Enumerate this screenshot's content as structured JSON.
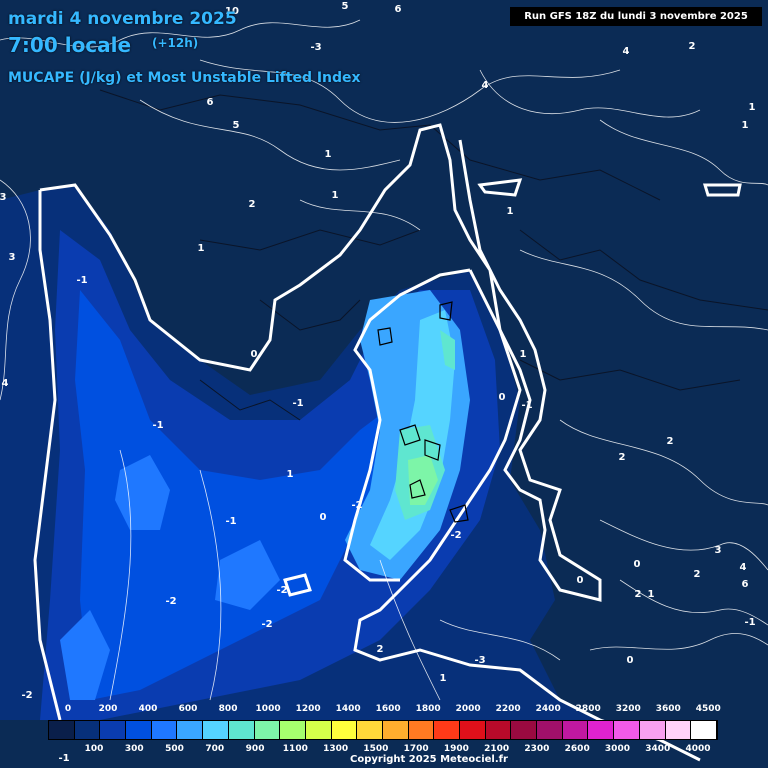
{
  "header": {
    "date": "mardi 4 novembre 2025",
    "time": "7:00 locale",
    "lead": "(+12h)",
    "parameter": "MUCAPE (J/kg) et Most Unstable Lifted Index"
  },
  "run_label": "Run GFS 18Z du lundi 3 novembre 2025",
  "copyright": "Copyright 2025 Meteociel.fr",
  "legend": {
    "top_labels": [
      "0",
      "200",
      "400",
      "600",
      "800",
      "1000",
      "1200",
      "1400",
      "1600",
      "1800",
      "2000",
      "2200",
      "2400",
      "2800",
      "3200",
      "3600",
      "4500"
    ],
    "bottom_labels": [
      "100",
      "300",
      "500",
      "700",
      "900",
      "1100",
      "1300",
      "1500",
      "1700",
      "1900",
      "2100",
      "2300",
      "2600",
      "3000",
      "3400",
      "4000"
    ],
    "colors": [
      "#0a1f4a",
      "#07307a",
      "#0a3cb0",
      "#0050e0",
      "#1f78ff",
      "#3aa6ff",
      "#55d4ff",
      "#5fe6d0",
      "#7df5a8",
      "#a6ff6e",
      "#d6ff4a",
      "#ffff3c",
      "#ffd83a",
      "#ffae2e",
      "#ff7a22",
      "#ff3a18",
      "#e0101a",
      "#b80a2a",
      "#9a0a40",
      "#a0106a",
      "#c018a0",
      "#e022d0",
      "#f25ae8",
      "#f7a0f0",
      "#ffd2fa",
      "#ffffff"
    ]
  },
  "lifted_index_labels": [
    {
      "text": "10"
    },
    {
      "text": "5"
    },
    {
      "text": "6"
    },
    {
      "text": "-3"
    },
    {
      "text": "4"
    },
    {
      "text": "2"
    },
    {
      "text": "4"
    },
    {
      "text": "1"
    },
    {
      "text": "1"
    },
    {
      "text": "6"
    },
    {
      "text": "5"
    },
    {
      "text": "3"
    },
    {
      "text": "1"
    },
    {
      "text": "1"
    },
    {
      "text": "2"
    },
    {
      "text": "1"
    },
    {
      "text": "1"
    },
    {
      "text": "3"
    },
    {
      "text": "-1"
    },
    {
      "text": "0"
    },
    {
      "text": "4"
    },
    {
      "text": "-1"
    },
    {
      "text": "1"
    },
    {
      "text": "0"
    },
    {
      "text": "-1"
    },
    {
      "text": "-1"
    },
    {
      "text": "1"
    },
    {
      "text": "2"
    },
    {
      "text": "2"
    },
    {
      "text": "-2"
    },
    {
      "text": "0"
    },
    {
      "text": "-1"
    },
    {
      "text": "-2"
    },
    {
      "text": "-2"
    },
    {
      "text": "-2"
    },
    {
      "text": "3"
    },
    {
      "text": "2"
    },
    {
      "text": "4"
    },
    {
      "text": "6"
    },
    {
      "text": "0"
    },
    {
      "text": "2"
    },
    {
      "text": "1"
    },
    {
      "text": "-2"
    },
    {
      "text": "-3"
    },
    {
      "text": "1"
    },
    {
      "text": "0"
    },
    {
      "text": "2"
    },
    {
      "text": "0"
    },
    {
      "text": "-2"
    },
    {
      "text": "-1"
    },
    {
      "text": "-1"
    }
  ]
}
